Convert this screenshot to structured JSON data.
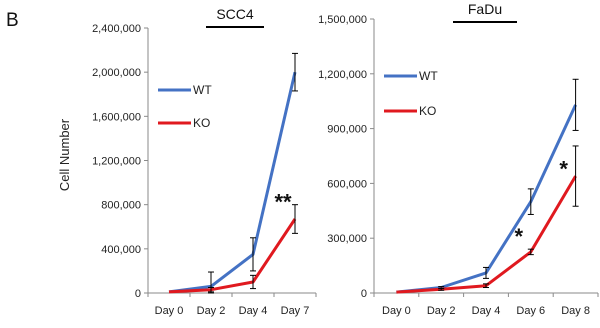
{
  "panel_label": "B",
  "shared_ylabel": "Cell Number",
  "chart_data": [
    {
      "type": "line",
      "title": "SCC4",
      "categories": [
        "Day 0",
        "Day 2",
        "Day 4",
        "Day 7"
      ],
      "ylabel": "Cell Number",
      "ylim": [
        0,
        2400000
      ],
      "yticks": [
        0,
        400000,
        800000,
        1200000,
        1600000,
        2000000,
        2400000
      ],
      "ytick_labels": [
        "0",
        "400,000",
        "800,000",
        "1,200,000",
        "1,600,000",
        "2,000,000",
        "2,400,000"
      ],
      "grid": false,
      "legend": "upper-left",
      "series": [
        {
          "name": "WT",
          "color": "#4472C4",
          "values": [
            10000,
            60000,
            350000,
            2000000
          ],
          "errors": [
            0,
            130000,
            150000,
            170000
          ]
        },
        {
          "name": "KO",
          "color": "#E0191F",
          "values": [
            10000,
            30000,
            100000,
            670000
          ],
          "errors": [
            0,
            20000,
            60000,
            130000
          ]
        }
      ],
      "annotations": [
        {
          "category": "Day 7",
          "value": 810000,
          "text": "**"
        }
      ]
    },
    {
      "type": "line",
      "title": "FaDu",
      "categories": [
        "Day 0",
        "Day 2",
        "Day 4",
        "Day 6",
        "Day 8"
      ],
      "ylim": [
        0,
        1500000
      ],
      "yticks": [
        0,
        300000,
        600000,
        900000,
        1200000,
        1500000
      ],
      "ytick_labels": [
        "0",
        "300,000",
        "600,000",
        "900,000",
        "1,200,000",
        "1,500,000"
      ],
      "grid": false,
      "legend": "upper-left",
      "series": [
        {
          "name": "WT",
          "color": "#4472C4",
          "values": [
            5000,
            30000,
            110000,
            500000,
            1030000
          ],
          "errors": [
            0,
            5000,
            30000,
            70000,
            140000
          ]
        },
        {
          "name": "KO",
          "color": "#E0191F",
          "values": [
            5000,
            20000,
            40000,
            225000,
            640000
          ],
          "errors": [
            0,
            5000,
            10000,
            15000,
            165000
          ]
        }
      ],
      "annotations": [
        {
          "category": "Day 6",
          "value": 300000,
          "text": "*"
        },
        {
          "category": "Day 8",
          "value": 670000,
          "text": "*"
        }
      ]
    }
  ]
}
